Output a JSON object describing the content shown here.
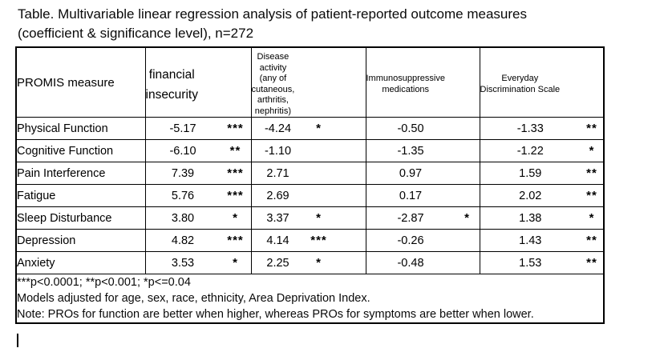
{
  "title": "Table. Multivariable linear regression analysis of patient-reported outcome measures\n(coefficient & significance level), n=272",
  "table": {
    "header": {
      "measure": "PROMIS measure",
      "columns": [
        {
          "label": "financial\ninsecurity",
          "size": "large"
        },
        {
          "label": "Disease\nactivity\n(any of\ncutaneous,\narthritis,\nnephritis)",
          "size": "small"
        },
        {
          "label": "Immunosuppressive\nmedications",
          "size": "small"
        },
        {
          "label": "Everyday\nDiscrimination Scale",
          "size": "small"
        }
      ]
    },
    "rows": [
      {
        "measure": "Physical Function",
        "values": [
          {
            "coef": "-5.17",
            "sig": "***"
          },
          {
            "coef": "-4.24",
            "sig": "*"
          },
          {
            "coef": "-0.50",
            "sig": ""
          },
          {
            "coef": "-1.33",
            "sig": "**"
          }
        ]
      },
      {
        "measure": "Cognitive Function",
        "values": [
          {
            "coef": "-6.10",
            "sig": "**"
          },
          {
            "coef": "-1.10",
            "sig": ""
          },
          {
            "coef": "-1.35",
            "sig": ""
          },
          {
            "coef": "-1.22",
            "sig": "*"
          }
        ]
      },
      {
        "measure": "Pain Interference",
        "values": [
          {
            "coef": "7.39",
            "sig": "***"
          },
          {
            "coef": "2.71",
            "sig": ""
          },
          {
            "coef": "0.97",
            "sig": ""
          },
          {
            "coef": "1.59",
            "sig": "**"
          }
        ]
      },
      {
        "measure": "Fatigue",
        "values": [
          {
            "coef": "5.76",
            "sig": "***"
          },
          {
            "coef": "2.69",
            "sig": ""
          },
          {
            "coef": "0.17",
            "sig": ""
          },
          {
            "coef": "2.02",
            "sig": "**"
          }
        ]
      },
      {
        "measure": "Sleep Disturbance",
        "values": [
          {
            "coef": "3.80",
            "sig": "*"
          },
          {
            "coef": "3.37",
            "sig": "*"
          },
          {
            "coef": "-2.87",
            "sig": "*"
          },
          {
            "coef": "1.38",
            "sig": "*"
          }
        ]
      },
      {
        "measure": "Depression",
        "values": [
          {
            "coef": "4.82",
            "sig": "***"
          },
          {
            "coef": "4.14",
            "sig": "***"
          },
          {
            "coef": "-0.26",
            "sig": ""
          },
          {
            "coef": "1.43",
            "sig": "**"
          }
        ]
      },
      {
        "measure": "Anxiety",
        "values": [
          {
            "coef": "3.53",
            "sig": "*"
          },
          {
            "coef": "2.25",
            "sig": "*"
          },
          {
            "coef": "-0.48",
            "sig": ""
          },
          {
            "coef": "1.53",
            "sig": "**"
          }
        ]
      }
    ],
    "footnotes": [
      "***p<0.0001; **p<0.001; *p<=0.04",
      "Models adjusted for age, sex, race, ethnicity, Area Deprivation Index.",
      "Note: PROs for function are better when higher, whereas PROs for symptoms are better when lower."
    ]
  },
  "colors": {
    "text": "#000000",
    "border": "#000000",
    "background": "#ffffff"
  }
}
